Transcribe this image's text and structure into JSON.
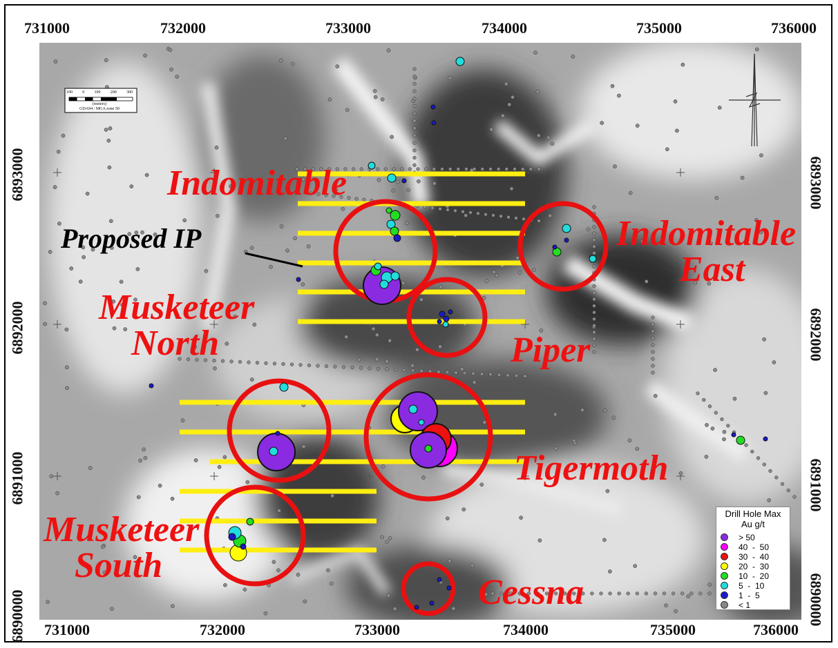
{
  "easting_labels": [
    "731000",
    "732000",
    "733000",
    "734000",
    "735000",
    "736000"
  ],
  "northing_labels": [
    "6893000",
    "6892000",
    "6891000",
    "6890000"
  ],
  "prospects": {
    "indomitable": "Indomitable",
    "indomitable_east_1": "Indomitable",
    "indomitable_east_2": "East",
    "musketeer_north_1": "Musketeer",
    "musketeer_north_2": "North",
    "piper": "Piper",
    "tigermoth": "Tigermoth",
    "musketeer_south_1": "Musketeer",
    "musketeer_south_2": "South",
    "cessna": "Cessna"
  },
  "proposed_ip_label": "Proposed IP",
  "scale_bar": {
    "ticks": [
      "100",
      "0",
      "100",
      "200",
      "300"
    ],
    "units": "(meters)",
    "projection": "GDA94 / MGA zone 50"
  },
  "legend": {
    "title_1": "Drill Hole Max",
    "title_2": "Au g/t",
    "classes": [
      {
        "label": "> 50",
        "color": "#8a2be2"
      },
      {
        "label": "40  -  50",
        "color": "#ff00ff"
      },
      {
        "label": "30  -  40",
        "color": "#ee1111"
      },
      {
        "label": "20  -  30",
        "color": "#ffff00"
      },
      {
        "label": "10  -  20",
        "color": "#22dd22"
      },
      {
        "label": "5  -  10",
        "color": "#22dddd"
      },
      {
        "label": "1  -  5",
        "color": "#1a1acc"
      },
      {
        "label": "< 1",
        "color": "#888888"
      }
    ]
  },
  "colors": {
    "ip_lines": "#ffee11",
    "prospect_circles": "#e81010",
    "prospect_text": "#ee1111"
  }
}
